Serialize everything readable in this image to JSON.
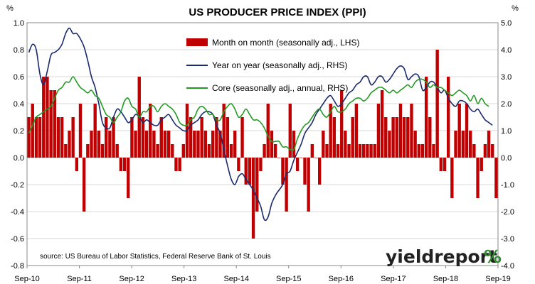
{
  "chart_data": {
    "type": "bar+line",
    "title": "US PRODUCER PRICE INDEX (PPI)",
    "left_unit": "%",
    "right_unit": "%",
    "left_axis": {
      "min": -0.8,
      "max": 1.0,
      "ticks": [
        "1.0",
        "0.8",
        "0.6",
        "0.4",
        "0.2",
        "0.0",
        "-0.2",
        "-0.4",
        "-0.6",
        "-0.8"
      ]
    },
    "right_axis": {
      "min": -4.0,
      "max": 5.0,
      "ticks": [
        "5.0",
        "4.0",
        "3.0",
        "2.0",
        "1.0",
        "0.0",
        "-1.0",
        "-2.0",
        "-3.0",
        "-4.0"
      ]
    },
    "x_ticks": [
      "Sep-10",
      "Sep-11",
      "Sep-12",
      "Sep-13",
      "Sep-14",
      "Sep-15",
      "Sep-16",
      "Sep-17",
      "Sep-18",
      "Sep-19"
    ],
    "legend_position": "top-center",
    "grid": true,
    "source": "source: US Bureau of Labor Statistics, Federal Reserve Bank of St. Louis",
    "brand": {
      "text": "yieldreport",
      "symbol": "%"
    },
    "series": [
      {
        "name": "Month on month (seasonally adj., LHS)",
        "type": "bar",
        "axis": "left",
        "color": "#c00000",
        "values": [
          0.3,
          0.4,
          0.3,
          0.3,
          0.6,
          0.6,
          0.5,
          0.5,
          0.3,
          0.3,
          0.1,
          0.2,
          0.3,
          -0.1,
          0.4,
          -0.4,
          0.1,
          0.2,
          0.4,
          0.2,
          0.1,
          0.3,
          0.2,
          0.3,
          0.1,
          -0.1,
          -0.1,
          -0.3,
          0.3,
          0.2,
          0.6,
          0.3,
          0.2,
          0.4,
          0.2,
          0.1,
          0.3,
          0.2,
          0.2,
          0.1,
          -0.1,
          -0.1,
          0.1,
          0.4,
          0.3,
          0.2,
          0.2,
          0.3,
          0.2,
          0.1,
          0.2,
          0.3,
          0.2,
          0.4,
          0.3,
          0.1,
          0.2,
          -0.1,
          0.3,
          -0.2,
          -0.2,
          -0.6,
          -0.4,
          -0.1,
          0.1,
          0.4,
          0.2,
          0.1,
          0.0,
          -0.2,
          -0.4,
          0.4,
          0.2,
          -0.1,
          0.0,
          -0.2,
          -0.4,
          0.1,
          0.0,
          -0.2,
          0.2,
          0.1,
          0.4,
          0.3,
          0.1,
          0.5,
          0.2,
          0.1,
          0.3,
          0.4,
          0.1,
          0.1,
          0.1,
          0.1,
          0.1,
          0.4,
          0.5,
          0.3,
          0.2,
          0.3,
          0.3,
          0.4,
          0.3,
          0.3,
          0.4,
          0.2,
          0.1,
          0.1,
          0.6,
          0.3,
          0.1,
          0.8,
          -0.1,
          -0.1,
          0.6,
          -0.3,
          0.2,
          0.4,
          0.2,
          0.4,
          0.2,
          0.1,
          -0.3,
          -0.1,
          0.1,
          0.2,
          0.1,
          -0.3
        ]
      },
      {
        "name": "Year on year (seasonally adj., RHS)",
        "type": "line",
        "axis": "right",
        "color": "#1a2a6c",
        "values": [
          3.9,
          4.2,
          4.0,
          3.1,
          2.7,
          3.2,
          3.8,
          3.9,
          4.0,
          4.2,
          4.6,
          4.8,
          4.6,
          4.6,
          4.4,
          4.1,
          3.6,
          3.0,
          2.6,
          2.0,
          1.3,
          1.1,
          1.1,
          1.5,
          1.8,
          1.7,
          1.5,
          1.3,
          1.4,
          1.6,
          1.5,
          1.3,
          1.4,
          1.3,
          1.2,
          1.2,
          1.4,
          1.5,
          1.6,
          1.4,
          1.2,
          1.1,
          1.0,
          1.0,
          1.2,
          1.3,
          1.4,
          1.6,
          1.7,
          1.7,
          1.6,
          1.2,
          0.9,
          0.3,
          -0.3,
          -0.8,
          -1.0,
          -0.7,
          -0.6,
          -0.8,
          -1.0,
          -1.2,
          -1.5,
          -1.8,
          -2.3,
          -2.2,
          -1.7,
          -1.4,
          -1.2,
          -1.0,
          -0.6,
          -0.5,
          -0.1,
          0.2,
          0.5,
          0.9,
          1.1,
          1.3,
          1.6,
          1.8,
          2.0,
          2.2,
          2.3,
          2.1,
          1.9,
          2.0,
          2.2,
          2.4,
          2.5,
          2.7,
          2.8,
          3.0,
          3.0,
          2.7,
          2.8,
          3.0,
          3.0,
          2.8,
          2.9,
          3.1,
          3.3,
          3.4,
          3.3,
          2.9,
          3.0,
          3.1,
          3.0,
          2.5,
          2.6,
          2.8,
          2.8,
          2.6,
          2.4,
          2.5,
          2.2,
          2.0,
          1.9,
          2.1,
          2.1,
          2.0,
          1.8,
          1.7,
          1.8,
          1.6,
          1.4,
          1.3,
          1.2
        ]
      },
      {
        "name": "Core (seasonally adj., annual, RHS)",
        "type": "line",
        "axis": "right",
        "color": "#229922",
        "values": [
          0.9,
          1.2,
          1.5,
          1.6,
          1.7,
          1.8,
          1.9,
          2.2,
          2.5,
          2.6,
          2.8,
          2.8,
          3.0,
          2.8,
          2.6,
          2.5,
          2.4,
          2.5,
          2.3,
          2.2,
          1.9,
          1.6,
          1.5,
          1.3,
          1.5,
          1.7,
          2.1,
          2.2,
          1.9,
          1.8,
          1.5,
          1.7,
          1.7,
          1.9,
          1.9,
          1.7,
          1.9,
          2.0,
          1.9,
          1.8,
          1.6,
          1.3,
          1.2,
          1.2,
          1.4,
          1.5,
          1.8,
          1.9,
          1.8,
          1.6,
          1.6,
          1.4,
          1.4,
          1.7,
          1.9,
          2.0,
          1.8,
          1.5,
          1.6,
          1.8,
          1.6,
          1.4,
          1.4,
          1.3,
          1.1,
          0.8,
          0.6,
          0.6,
          0.6,
          0.4,
          0.4,
          0.3,
          0.3,
          0.7,
          1.0,
          1.2,
          1.3,
          1.5,
          1.7,
          1.8,
          1.6,
          1.5,
          1.7,
          1.9,
          1.7,
          1.7,
          1.8,
          2.0,
          2.1,
          2.2,
          2.2,
          2.1,
          2.2,
          2.4,
          2.5,
          2.6,
          2.6,
          2.5,
          2.4,
          2.5,
          2.4,
          2.5,
          2.6,
          2.7,
          2.6,
          2.8,
          2.9,
          2.9,
          2.8,
          2.6,
          2.7,
          2.6,
          2.6,
          2.5,
          2.4,
          2.3,
          2.4,
          2.5,
          2.4,
          2.3,
          2.1,
          2.3,
          2.0,
          2.2,
          2.0,
          1.9
        ]
      }
    ]
  }
}
